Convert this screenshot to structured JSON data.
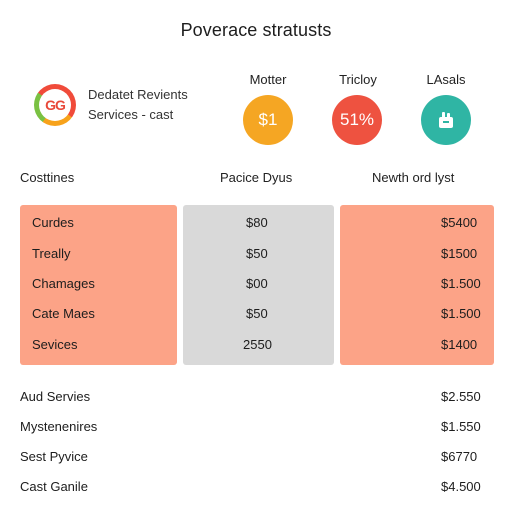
{
  "title": "Poverace stratusts",
  "brand": {
    "logo_text": "GG",
    "line1": "Dedatet Revients",
    "line2": "Services - cast"
  },
  "stats": [
    {
      "label": "Motter",
      "value": "$1",
      "color": "#f5a623",
      "icon": ""
    },
    {
      "label": "Tricloy",
      "value": "51%",
      "color": "#ee5240",
      "icon": ""
    },
    {
      "label": "LAsals",
      "value": "",
      "color": "#2fb5a4",
      "icon": "robot-hand-icon"
    }
  ],
  "table_headers": {
    "col1": "Costtines",
    "col2": "Pacice Dyus",
    "col3": "Newth ord lyst"
  },
  "panel_rows": [
    {
      "name": "Curdes",
      "mid": "$80",
      "right": "$5400"
    },
    {
      "name": "Treally",
      "mid": "$50",
      "right": "$1500"
    },
    {
      "name": "Chamages",
      "mid": "$00",
      "right": "$1.500"
    },
    {
      "name": "Cate Maes",
      "mid": "$50",
      "right": "$1.500"
    },
    {
      "name": "Sevices",
      "mid": "2550",
      "right": "$1400"
    }
  ],
  "lower_rows": [
    {
      "name": "Aud Servies",
      "value": "$2.550"
    },
    {
      "name": "Mystenenires",
      "value": "$1.550"
    },
    {
      "name": "Sest Pyvice",
      "value": "$6770"
    },
    {
      "name": "Cast Ganile",
      "value": "$4.500"
    }
  ]
}
